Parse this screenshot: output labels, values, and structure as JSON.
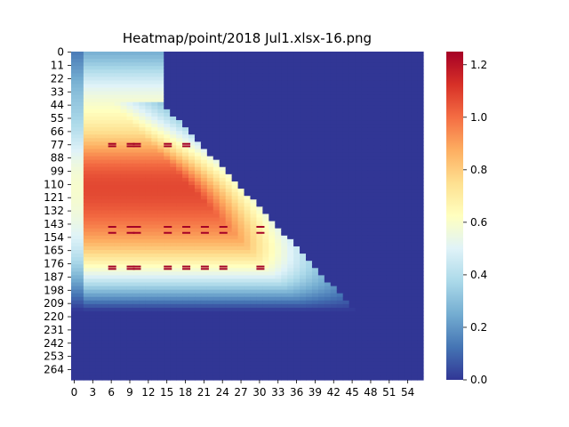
{
  "chart_data": {
    "type": "heatmap",
    "title": "Heatmap/point/2018 Jul1.xlsx-16.png",
    "xlabel": "",
    "ylabel": "",
    "x_range": [
      0,
      56
    ],
    "y_range": [
      0,
      272
    ],
    "x_ticks": [
      "0",
      "3",
      "6",
      "9",
      "12",
      "15",
      "18",
      "21",
      "24",
      "27",
      "30",
      "33",
      "36",
      "39",
      "42",
      "45",
      "48",
      "51",
      "54"
    ],
    "y_ticks": [
      "0",
      "11",
      "22",
      "33",
      "44",
      "55",
      "66",
      "77",
      "88",
      "99",
      "110",
      "121",
      "132",
      "143",
      "154",
      "165",
      "176",
      "187",
      "198",
      "209",
      "220",
      "231",
      "242",
      "253",
      "264"
    ],
    "colorbar": {
      "min": 0.0,
      "max": 1.25,
      "ticks": [
        "0.0",
        "0.2",
        "0.4",
        "0.6",
        "0.8",
        "1.0",
        "1.2"
      ],
      "colormap": "RdYlBu_r",
      "stops": [
        "#313695",
        "#4575b4",
        "#74add1",
        "#abd9e9",
        "#e0f3f8",
        "#ffffbf",
        "#fee090",
        "#fdae61",
        "#f46d43",
        "#d73027",
        "#a50026"
      ]
    },
    "structure": {
      "masked_value": 0.0,
      "diagonal_boundary": [
        [
          14,
          40
        ],
        [
          56,
          272
        ]
      ],
      "peak_bands": [
        {
          "rows": [
            140,
            192
          ],
          "value": 1.0
        },
        {
          "rows": [
            65,
            135
          ],
          "value": 1.0
        },
        {
          "rows": [
            100,
            120
          ],
          "value": 0.9
        }
      ],
      "saturated_streaks_rows": [
        76,
        78,
        145,
        150,
        178,
        180
      ],
      "low_region": {
        "rows": [
          230,
          272
        ],
        "value": 0.15
      }
    }
  }
}
